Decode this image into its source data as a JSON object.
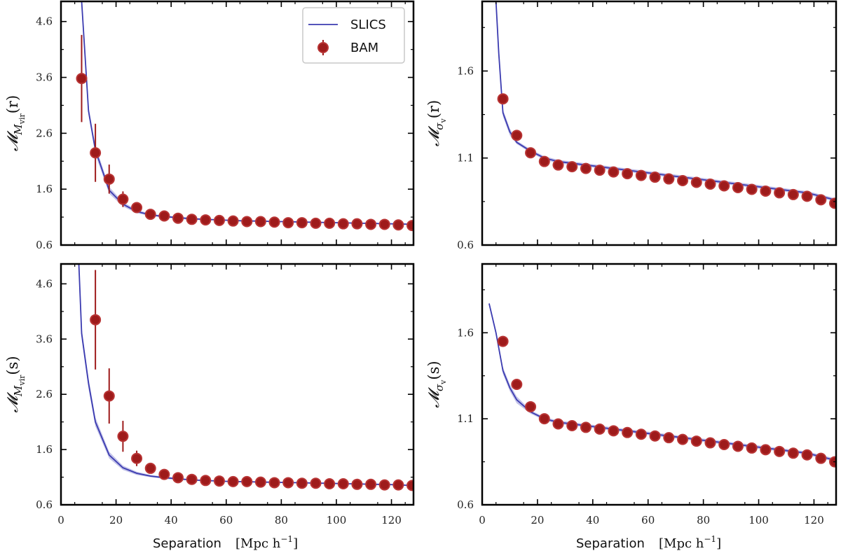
{
  "chart_data": [
    {
      "type": "line",
      "panel": "top-left",
      "ylabel": "𝓜_{M_vir}(r)",
      "ylabel_main": "𝓜",
      "ylabel_sub": "M",
      "ylabel_subsub": "vir",
      "ylabel_arg": "(r)",
      "xlabel": "",
      "xlim": [
        0,
        128
      ],
      "ylim": [
        0.6,
        4.96
      ],
      "xticks": [
        0,
        20,
        40,
        60,
        80,
        100,
        120
      ],
      "show_xtick_labels": false,
      "yticks": [
        0.6,
        1.6,
        2.6,
        3.6,
        4.6
      ],
      "ytick_labels": [
        "0.6",
        "1.6",
        "2.6",
        "3.6",
        "4.6"
      ],
      "legend": {
        "placement": "top-right",
        "entries": [
          "SLICS",
          "BAM"
        ]
      },
      "series": [
        {
          "name": "SLICS",
          "style": "line-band",
          "x": [
            7.5,
            10,
            12.5,
            17.5,
            22.5,
            27.5,
            32.5,
            37.5,
            42.5,
            47.5,
            52.5,
            57.5,
            62.5,
            67.5,
            72.5,
            77.5,
            82.5,
            87.5,
            92.5,
            97.5,
            102.5,
            107.5,
            112.5,
            117.5,
            122.5,
            127.5
          ],
          "y": [
            4.96,
            3.0,
            2.3,
            1.58,
            1.33,
            1.2,
            1.14,
            1.11,
            1.09,
            1.07,
            1.06,
            1.05,
            1.04,
            1.03,
            1.03,
            1.02,
            1.02,
            1.01,
            1.01,
            1.0,
            1.0,
            0.99,
            0.99,
            0.98,
            0.98,
            0.97
          ],
          "y_lower": [
            4.96,
            2.92,
            2.22,
            1.52,
            1.29,
            1.17,
            1.12,
            1.09,
            1.07,
            1.05,
            1.05,
            1.04,
            1.03,
            1.02,
            1.02,
            1.01,
            1.01,
            1.0,
            1.0,
            0.99,
            0.99,
            0.98,
            0.98,
            0.97,
            0.97,
            0.96
          ],
          "y_upper": [
            4.96,
            3.08,
            2.38,
            1.64,
            1.37,
            1.23,
            1.16,
            1.13,
            1.11,
            1.09,
            1.07,
            1.06,
            1.05,
            1.04,
            1.04,
            1.03,
            1.03,
            1.02,
            1.02,
            1.01,
            1.01,
            1.0,
            1.0,
            0.99,
            0.99,
            0.98
          ]
        },
        {
          "name": "BAM",
          "style": "errorbar",
          "x": [
            7.5,
            12.5,
            17.5,
            22.5,
            27.5,
            32.5,
            37.5,
            42.5,
            47.5,
            52.5,
            57.5,
            62.5,
            67.5,
            72.5,
            77.5,
            82.5,
            87.5,
            92.5,
            97.5,
            102.5,
            107.5,
            112.5,
            117.5,
            122.5,
            127.5
          ],
          "y": [
            3.58,
            2.25,
            1.78,
            1.42,
            1.27,
            1.15,
            1.12,
            1.08,
            1.06,
            1.05,
            1.04,
            1.03,
            1.02,
            1.02,
            1.01,
            1.0,
            1.0,
            0.99,
            0.99,
            0.98,
            0.98,
            0.97,
            0.97,
            0.96,
            0.95
          ],
          "err": [
            0.78,
            0.52,
            0.26,
            0.14,
            0.08,
            0.04,
            0.03,
            0.02,
            0.02,
            0.02,
            0.02,
            0.02,
            0.02,
            0.02,
            0.02,
            0.02,
            0.02,
            0.02,
            0.02,
            0.02,
            0.02,
            0.02,
            0.02,
            0.02,
            0.02
          ]
        }
      ]
    },
    {
      "type": "line",
      "panel": "top-right",
      "ylabel": "𝓜_{σ_v}(r)",
      "ylabel_main": "𝓜",
      "ylabel_sub": "σ",
      "ylabel_subsub": "v",
      "ylabel_arg": "(r)",
      "xlabel": "",
      "xlim": [
        0,
        128
      ],
      "ylim": [
        0.6,
        2.0
      ],
      "xticks": [
        0,
        20,
        40,
        60,
        80,
        100,
        120
      ],
      "show_xtick_labels": false,
      "yticks": [
        0.6,
        1.1,
        1.6
      ],
      "ytick_labels": [
        "0.6",
        "1.1",
        "1.6"
      ],
      "series": [
        {
          "name": "SLICS",
          "style": "line-band",
          "x": [
            5,
            6,
            7.5,
            10,
            12.5,
            17.5,
            22.5,
            27.5,
            32.5,
            37.5,
            42.5,
            47.5,
            52.5,
            57.5,
            62.5,
            67.5,
            72.5,
            77.5,
            82.5,
            87.5,
            92.5,
            97.5,
            102.5,
            107.5,
            112.5,
            117.5,
            122.5,
            127.5
          ],
          "y": [
            2.0,
            1.7,
            1.36,
            1.25,
            1.19,
            1.14,
            1.1,
            1.08,
            1.07,
            1.06,
            1.05,
            1.04,
            1.03,
            1.02,
            1.01,
            1.0,
            0.99,
            0.98,
            0.97,
            0.96,
            0.95,
            0.94,
            0.93,
            0.92,
            0.91,
            0.9,
            0.88,
            0.86
          ],
          "y_lower": [
            2.0,
            1.69,
            1.34,
            1.23,
            1.18,
            1.13,
            1.09,
            1.07,
            1.06,
            1.05,
            1.04,
            1.03,
            1.02,
            1.01,
            1.0,
            0.99,
            0.98,
            0.97,
            0.96,
            0.95,
            0.94,
            0.93,
            0.92,
            0.91,
            0.9,
            0.89,
            0.87,
            0.85
          ],
          "y_upper": [
            2.0,
            1.71,
            1.38,
            1.27,
            1.2,
            1.15,
            1.11,
            1.09,
            1.08,
            1.07,
            1.06,
            1.05,
            1.04,
            1.03,
            1.02,
            1.01,
            1.0,
            0.99,
            0.98,
            0.97,
            0.96,
            0.95,
            0.94,
            0.93,
            0.92,
            0.91,
            0.89,
            0.87
          ]
        },
        {
          "name": "BAM",
          "style": "errorbar",
          "x": [
            7.5,
            12.5,
            17.5,
            22.5,
            27.5,
            32.5,
            37.5,
            42.5,
            47.5,
            52.5,
            57.5,
            62.5,
            67.5,
            72.5,
            77.5,
            82.5,
            87.5,
            92.5,
            97.5,
            102.5,
            107.5,
            112.5,
            117.5,
            122.5,
            127.5
          ],
          "y": [
            1.44,
            1.23,
            1.13,
            1.08,
            1.06,
            1.05,
            1.04,
            1.03,
            1.02,
            1.01,
            1.0,
            0.99,
            0.98,
            0.97,
            0.96,
            0.95,
            0.94,
            0.93,
            0.92,
            0.91,
            0.9,
            0.89,
            0.88,
            0.86,
            0.84
          ],
          "err": [
            0.02,
            0.01,
            0.01,
            0.01,
            0.01,
            0.01,
            0.01,
            0.01,
            0.01,
            0.01,
            0.01,
            0.01,
            0.01,
            0.01,
            0.01,
            0.01,
            0.01,
            0.01,
            0.01,
            0.01,
            0.01,
            0.01,
            0.01,
            0.01,
            0.01
          ]
        }
      ]
    },
    {
      "type": "line",
      "panel": "bottom-left",
      "ylabel": "𝓜_{M_vir}(s)",
      "ylabel_main": "𝓜",
      "ylabel_sub": "M",
      "ylabel_subsub": "vir",
      "ylabel_arg": "(s)",
      "xlabel": "Separation  [Mpc h⁻¹]",
      "xlim": [
        0,
        128
      ],
      "ylim": [
        0.6,
        4.96
      ],
      "xticks": [
        0,
        20,
        40,
        60,
        80,
        100,
        120
      ],
      "xtick_labels": [
        "0",
        "20",
        "40",
        "60",
        "80",
        "100",
        "120"
      ],
      "show_xtick_labels": true,
      "yticks": [
        0.6,
        1.6,
        2.6,
        3.6,
        4.6
      ],
      "ytick_labels": [
        "0.6",
        "1.6",
        "2.6",
        "3.6",
        "4.6"
      ],
      "series": [
        {
          "name": "SLICS",
          "style": "line-band",
          "x": [
            6.5,
            7.5,
            10,
            12.5,
            17.5,
            22.5,
            27.5,
            32.5,
            37.5,
            42.5,
            47.5,
            52.5,
            57.5,
            62.5,
            67.5,
            72.5,
            77.5,
            82.5,
            87.5,
            92.5,
            97.5,
            102.5,
            107.5,
            112.5,
            117.5,
            122.5,
            127.5
          ],
          "y": [
            4.96,
            3.7,
            2.8,
            2.1,
            1.5,
            1.27,
            1.17,
            1.12,
            1.09,
            1.07,
            1.05,
            1.04,
            1.03,
            1.02,
            1.02,
            1.01,
            1.01,
            1.0,
            1.0,
            0.99,
            0.99,
            0.98,
            0.98,
            0.97,
            0.97,
            0.96,
            0.95
          ],
          "y_lower": [
            4.96,
            3.6,
            2.7,
            2.02,
            1.44,
            1.23,
            1.14,
            1.1,
            1.07,
            1.05,
            1.04,
            1.03,
            1.02,
            1.01,
            1.01,
            1.0,
            1.0,
            0.99,
            0.99,
            0.98,
            0.98,
            0.97,
            0.97,
            0.96,
            0.96,
            0.95,
            0.94
          ],
          "y_upper": [
            4.96,
            3.8,
            2.9,
            2.18,
            1.56,
            1.31,
            1.2,
            1.14,
            1.11,
            1.09,
            1.06,
            1.05,
            1.04,
            1.03,
            1.03,
            1.02,
            1.02,
            1.01,
            1.01,
            1.0,
            1.0,
            0.99,
            0.99,
            0.98,
            0.98,
            0.97,
            0.96
          ]
        },
        {
          "name": "BAM",
          "style": "errorbar",
          "x": [
            12.5,
            17.5,
            22.5,
            27.5,
            32.5,
            37.5,
            42.5,
            47.5,
            52.5,
            57.5,
            62.5,
            67.5,
            72.5,
            77.5,
            82.5,
            87.5,
            92.5,
            97.5,
            102.5,
            107.5,
            112.5,
            117.5,
            122.5,
            127.5
          ],
          "y": [
            3.95,
            2.57,
            1.84,
            1.44,
            1.26,
            1.15,
            1.09,
            1.06,
            1.04,
            1.03,
            1.02,
            1.02,
            1.01,
            1.0,
            1.0,
            0.99,
            0.99,
            0.98,
            0.98,
            0.97,
            0.97,
            0.96,
            0.96,
            0.95
          ],
          "err": [
            0.9,
            0.5,
            0.28,
            0.14,
            0.06,
            0.03,
            0.02,
            0.02,
            0.02,
            0.02,
            0.02,
            0.02,
            0.02,
            0.02,
            0.02,
            0.02,
            0.02,
            0.02,
            0.02,
            0.02,
            0.02,
            0.02,
            0.02,
            0.02
          ]
        }
      ]
    },
    {
      "type": "line",
      "panel": "bottom-right",
      "ylabel": "𝓜_{σ_v}(s)",
      "ylabel_main": "𝓜",
      "ylabel_sub": "σ",
      "ylabel_subsub": "v",
      "ylabel_arg": "(s)",
      "xlabel": "Separation  [Mpc h⁻¹]",
      "xlim": [
        0,
        128
      ],
      "ylim": [
        0.6,
        2.0
      ],
      "xticks": [
        0,
        20,
        40,
        60,
        80,
        100,
        120
      ],
      "xtick_labels": [
        "0",
        "20",
        "40",
        "60",
        "80",
        "100",
        "120"
      ],
      "show_xtick_labels": true,
      "yticks": [
        0.6,
        1.1,
        1.6
      ],
      "ytick_labels": [
        "0.6",
        "1.1",
        "1.6"
      ],
      "series": [
        {
          "name": "SLICS",
          "style": "line-band",
          "x": [
            2.5,
            5,
            7.5,
            10,
            12.5,
            17.5,
            22.5,
            27.5,
            32.5,
            37.5,
            42.5,
            47.5,
            52.5,
            57.5,
            62.5,
            67.5,
            72.5,
            77.5,
            82.5,
            87.5,
            92.5,
            97.5,
            102.5,
            107.5,
            112.5,
            117.5,
            122.5,
            127.5
          ],
          "y": [
            1.77,
            1.6,
            1.38,
            1.28,
            1.21,
            1.14,
            1.1,
            1.08,
            1.07,
            1.06,
            1.05,
            1.04,
            1.03,
            1.02,
            1.01,
            1.0,
            0.99,
            0.98,
            0.97,
            0.96,
            0.95,
            0.94,
            0.93,
            0.92,
            0.91,
            0.9,
            0.88,
            0.86
          ],
          "y_lower": [
            1.76,
            1.59,
            1.36,
            1.26,
            1.19,
            1.13,
            1.09,
            1.07,
            1.06,
            1.05,
            1.04,
            1.03,
            1.02,
            1.01,
            1.0,
            0.99,
            0.98,
            0.97,
            0.96,
            0.95,
            0.94,
            0.93,
            0.92,
            0.91,
            0.9,
            0.89,
            0.87,
            0.85
          ],
          "y_upper": [
            1.78,
            1.61,
            1.4,
            1.3,
            1.23,
            1.15,
            1.11,
            1.09,
            1.08,
            1.07,
            1.06,
            1.05,
            1.04,
            1.03,
            1.02,
            1.01,
            1.0,
            0.99,
            0.98,
            0.97,
            0.96,
            0.95,
            0.94,
            0.93,
            0.92,
            0.91,
            0.89,
            0.87
          ]
        },
        {
          "name": "BAM",
          "style": "errorbar",
          "x": [
            7.5,
            12.5,
            17.5,
            22.5,
            27.5,
            32.5,
            37.5,
            42.5,
            47.5,
            52.5,
            57.5,
            62.5,
            67.5,
            72.5,
            77.5,
            82.5,
            87.5,
            92.5,
            97.5,
            102.5,
            107.5,
            112.5,
            117.5,
            122.5,
            127.5
          ],
          "y": [
            1.55,
            1.3,
            1.17,
            1.1,
            1.07,
            1.06,
            1.05,
            1.04,
            1.03,
            1.02,
            1.01,
            1.0,
            0.99,
            0.98,
            0.97,
            0.96,
            0.95,
            0.94,
            0.93,
            0.92,
            0.91,
            0.9,
            0.89,
            0.87,
            0.85
          ],
          "err": [
            0.02,
            0.01,
            0.01,
            0.01,
            0.01,
            0.01,
            0.01,
            0.01,
            0.01,
            0.01,
            0.01,
            0.01,
            0.01,
            0.01,
            0.01,
            0.01,
            0.01,
            0.01,
            0.01,
            0.01,
            0.01,
            0.01,
            0.01,
            0.01,
            0.01
          ]
        }
      ]
    }
  ],
  "figure": {
    "xlabel_text": "Separation",
    "xlabel_unit": "[Mpc h",
    "xlabel_exp": "−1",
    "xlabel_close": "]",
    "legend_slics": "SLICS",
    "legend_bam": "BAM",
    "colors": {
      "line": "#3b3bb0",
      "band": "#8f8fd6",
      "marker": "#9e1b1b",
      "marker_edge": "#b83434"
    }
  }
}
